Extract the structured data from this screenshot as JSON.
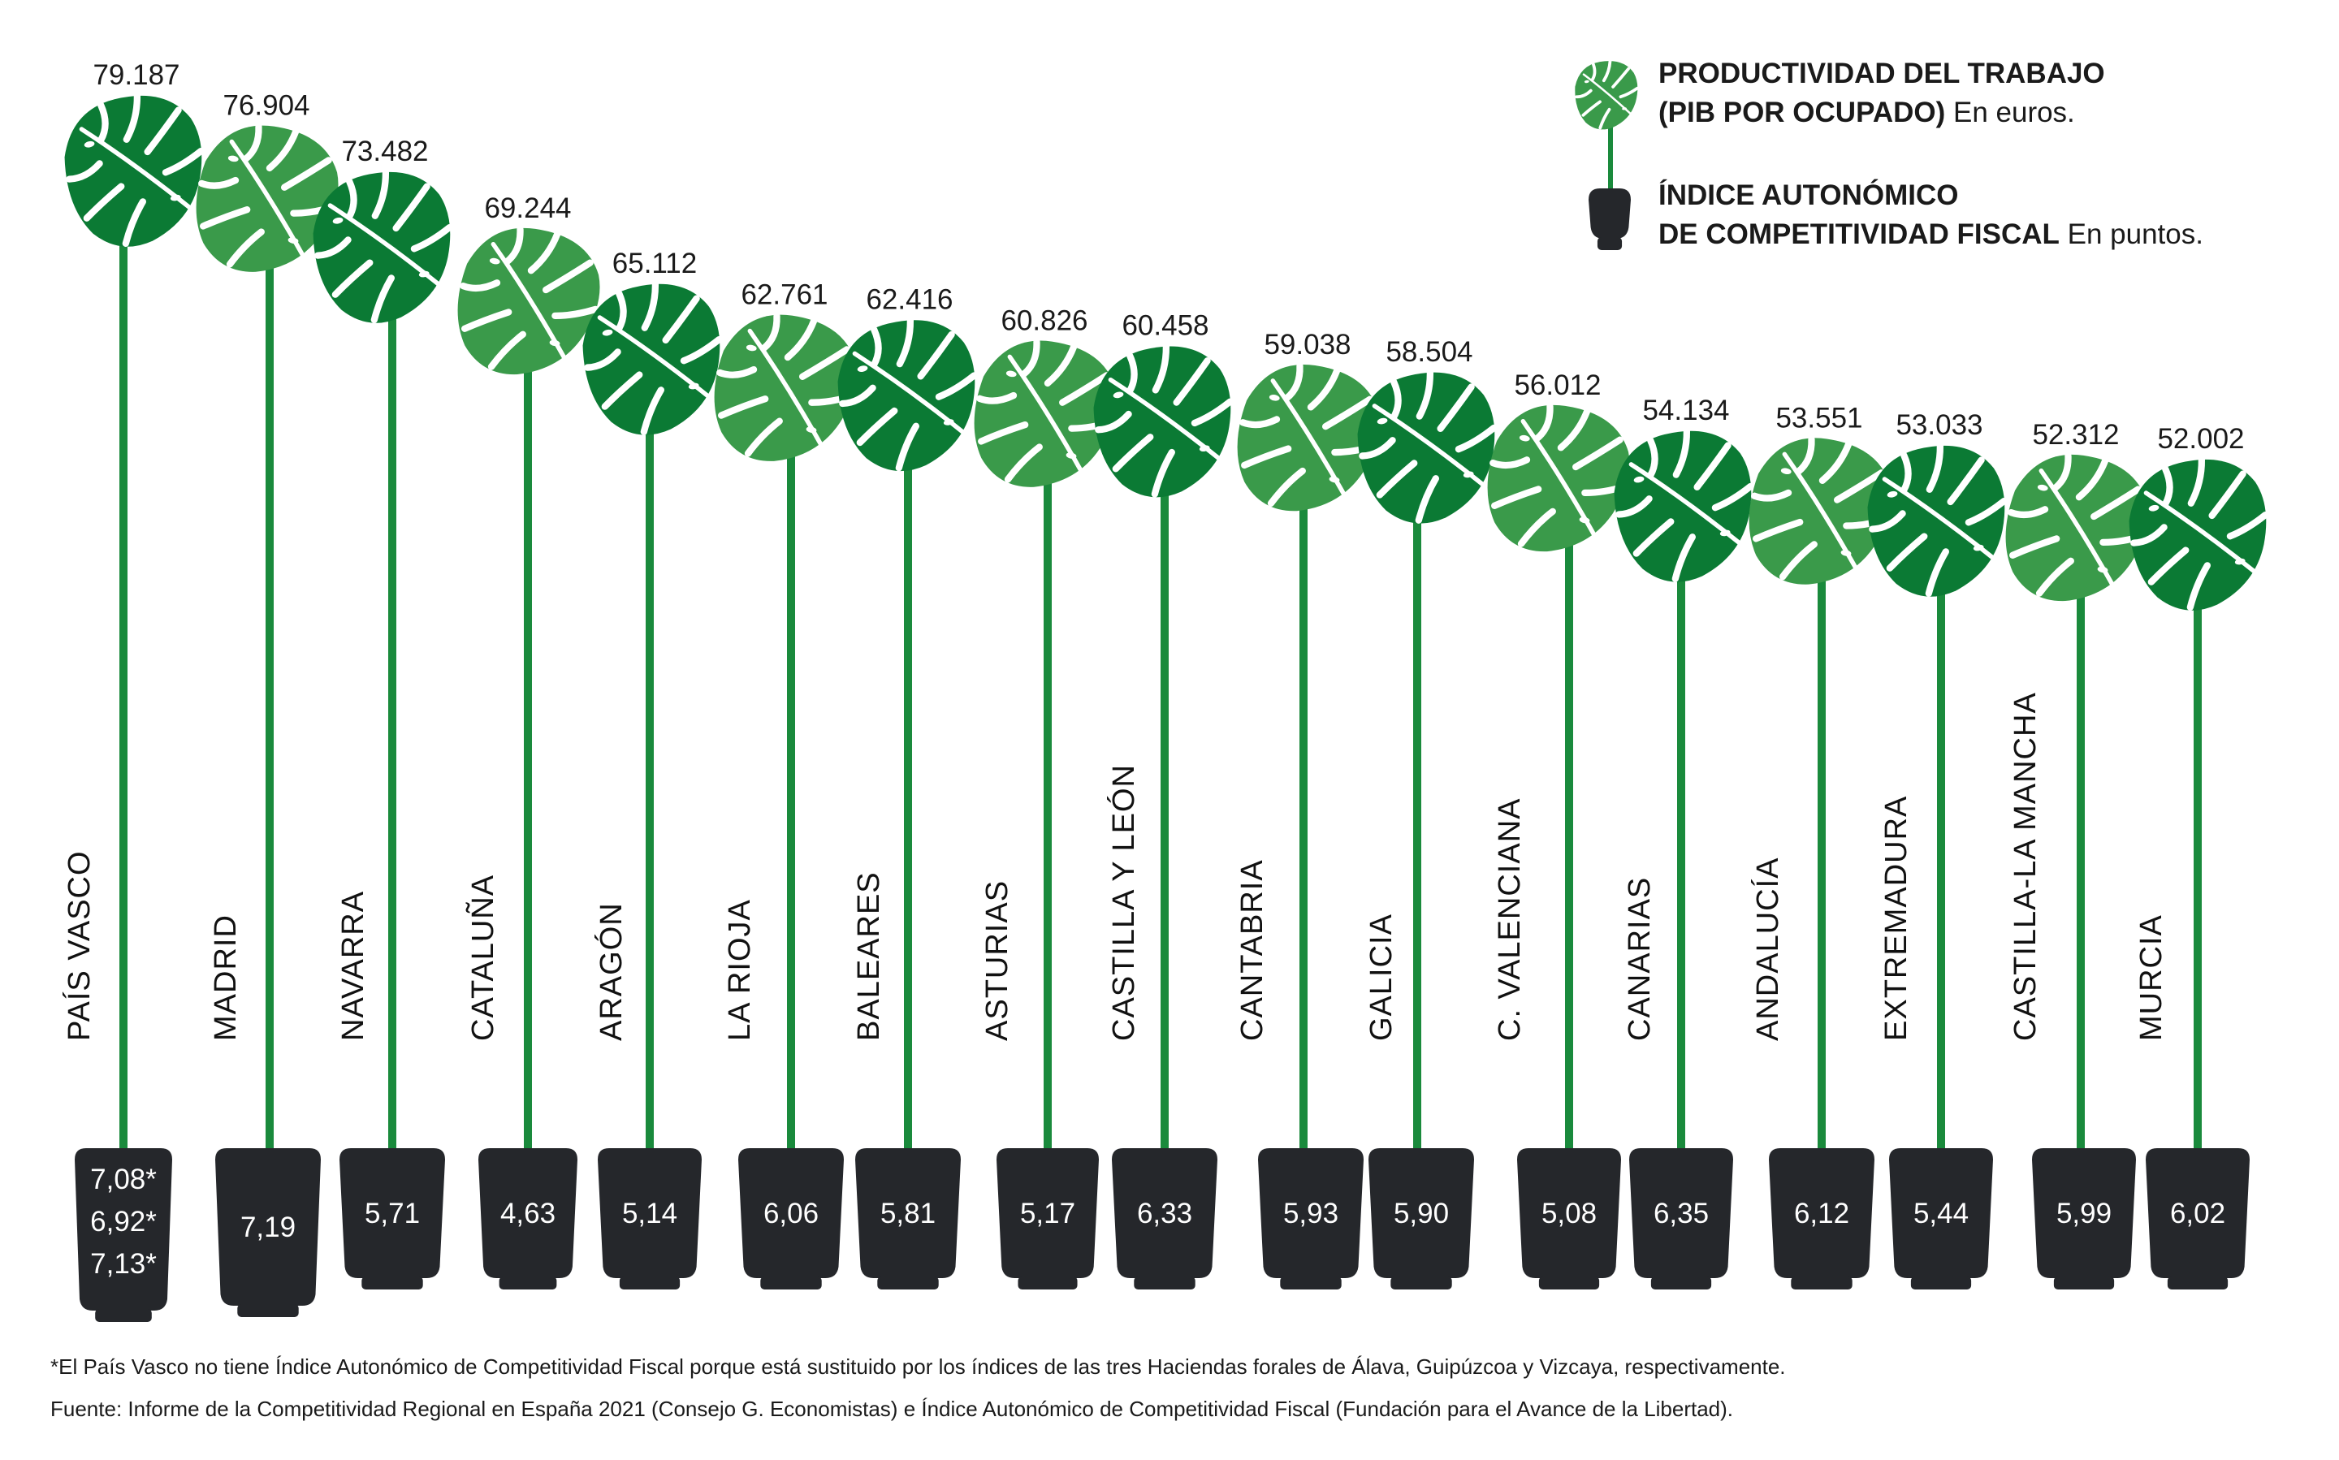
{
  "chart_data": {
    "type": "bar",
    "categories": [
      "PAÍS VASCO",
      "MADRID",
      "NAVARRA",
      "CATALUÑA",
      "ARAGÓN",
      "LA RIOJA",
      "BALEARES",
      "ASTURIAS",
      "CASTILLA Y LEÓN",
      "CANTABRIA",
      "GALICIA",
      "C. VALENCIANA",
      "CANARIAS",
      "ANDALUCÍA",
      "EXTREMADURA",
      "CASTILLA-LA MANCHA",
      "MURCIA"
    ],
    "series": [
      {
        "name": "PRODUCTIVIDAD DEL TRABAJO (PIB POR OCUPADO)",
        "values": [
          79187,
          76904,
          73482,
          69244,
          65112,
          62761,
          62416,
          60826,
          60458,
          59038,
          58504,
          56012,
          54134,
          53551,
          53033,
          52312,
          52002
        ],
        "labels": [
          "79.187",
          "76.904",
          "73.482",
          "69.244",
          "65.112",
          "62.761",
          "62.416",
          "60.826",
          "60.458",
          "59.038",
          "58.504",
          "56.012",
          "54.134",
          "53.551",
          "53.033",
          "52.312",
          "52.002"
        ]
      },
      {
        "name": "ÍNDICE AUTONÓMICO DE COMPETITIVIDAD FISCAL",
        "values": [
          null,
          7.19,
          5.71,
          4.63,
          5.14,
          6.06,
          5.81,
          5.17,
          6.33,
          5.93,
          5.9,
          5.08,
          6.35,
          6.12,
          5.44,
          5.99,
          6.02
        ],
        "labels": [
          [
            "7,08*",
            "6,92*",
            "7,13*"
          ],
          [
            "7,19"
          ],
          [
            "5,71"
          ],
          [
            "4,63"
          ],
          [
            "5,14"
          ],
          [
            "6,06"
          ],
          [
            "5,81"
          ],
          [
            "5,17"
          ],
          [
            "6,33"
          ],
          [
            "5,93"
          ],
          [
            "5,90"
          ],
          [
            "5,08"
          ],
          [
            "6,35"
          ],
          [
            "6,12"
          ],
          [
            "5,44"
          ],
          [
            "5,99"
          ],
          [
            "6,02"
          ]
        ]
      }
    ],
    "legend": {
      "position": "top-right",
      "items": [
        {
          "bold_lines": [
            "PRODUCTIVIDAD DEL TRABAJO",
            "(PIB POR OCUPADO)"
          ],
          "unit": "En euros."
        },
        {
          "bold_lines": [
            "ÍNDICE AUTONÓMICO",
            "DE COMPETITIVIDAD FISCAL"
          ],
          "unit": "En puntos."
        }
      ]
    },
    "colors": {
      "leaf_dark": "#0b7a34",
      "leaf_light": "#3a9a4a",
      "stem": "#1a8a3c",
      "pot": "#25272b"
    }
  },
  "footnote": "*El País Vasco no tiene Índice Autonómico de Competitividad Fiscal porque está sustituido por los índices de las tres Haciendas forales de Álava, Guipúzcoa y Vizcaya, respectivamente.",
  "source": "Fuente: Informe de la Competitividad Regional en España 2021 (Consejo G. Economistas) e Índice Autonómico de Competitividad Fiscal (Fundación para el Avance de la Libertad)."
}
